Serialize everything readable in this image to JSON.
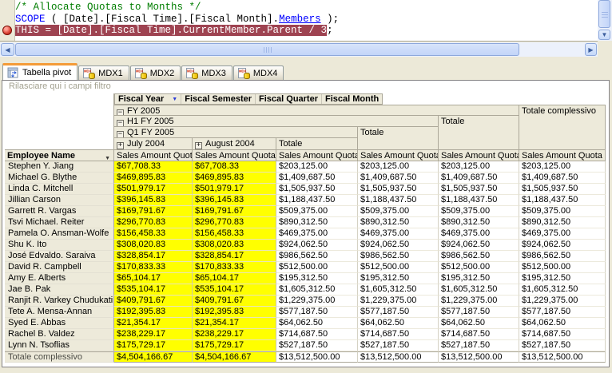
{
  "colors": {
    "window_gray": "#ECE9D8",
    "highlight_line_bg": "#9E4351",
    "comment_green": "#007D00",
    "keyword_blue": "#0000FF",
    "cell_highlight_yellow": "#FFFF00",
    "header_beige": "#EDEADA",
    "active_tab_accent_orange": "#F49B38",
    "breakpoint_red": "#C03030"
  },
  "code_editor": {
    "line1_comment": "/* Allocate Quotas to Months */",
    "line2": {
      "keyword": "SCOPE",
      "body": " ( [Date].[Fiscal Time].[Fiscal Month].",
      "member_fn": "Members",
      "tail": " );"
    },
    "line3": {
      "highlighted": "THIS = [Date].[Fiscal Time].CurrentMember.Parent / 3",
      "tail": ";"
    }
  },
  "tabs": [
    {
      "label": "Tabella pivot",
      "icon": "pivot-table-icon",
      "active": true
    },
    {
      "label": "MDX1",
      "icon": "mdx-icon",
      "active": false
    },
    {
      "label": "MDX2",
      "icon": "mdx-icon",
      "active": false
    },
    {
      "label": "MDX3",
      "icon": "mdx-icon",
      "active": false
    },
    {
      "label": "MDX4",
      "icon": "mdx-icon",
      "active": false
    }
  ],
  "pivot": {
    "filter_zone_text": "Rilasciare qui i campi filtro",
    "column_fields": [
      "Fiscal Year",
      "Fiscal Semester",
      "Fiscal Quarter",
      "Fiscal Month"
    ],
    "row_field": "Employee Name",
    "measure_label": "Sales Amount Quota",
    "hierarchy": {
      "fiscal_year": "FY 2005",
      "fiscal_semester": "H1 FY 2005",
      "fiscal_quarter": "Q1 FY 2005",
      "months": [
        "July 2004",
        "August 2004"
      ],
      "subtotal_label": "Totale",
      "grand_total_label": "Totale complessivo"
    },
    "rows": [
      {
        "name": "Stephen Y. Jiang",
        "values": [
          "$67,708.33",
          "$67,708.33",
          "$203,125.00",
          "$203,125.00",
          "$203,125.00",
          "$203,125.00"
        ]
      },
      {
        "name": "Michael G. Blythe",
        "values": [
          "$469,895.83",
          "$469,895.83",
          "$1,409,687.50",
          "$1,409,687.50",
          "$1,409,687.50",
          "$1,409,687.50"
        ]
      },
      {
        "name": "Linda C. Mitchell",
        "values": [
          "$501,979.17",
          "$501,979.17",
          "$1,505,937.50",
          "$1,505,937.50",
          "$1,505,937.50",
          "$1,505,937.50"
        ]
      },
      {
        "name": "Jillian Carson",
        "values": [
          "$396,145.83",
          "$396,145.83",
          "$1,188,437.50",
          "$1,188,437.50",
          "$1,188,437.50",
          "$1,188,437.50"
        ]
      },
      {
        "name": "Garrett R. Vargas",
        "values": [
          "$169,791.67",
          "$169,791.67",
          "$509,375.00",
          "$509,375.00",
          "$509,375.00",
          "$509,375.00"
        ]
      },
      {
        "name": "Tsvi Michael. Reiter",
        "values": [
          "$296,770.83",
          "$296,770.83",
          "$890,312.50",
          "$890,312.50",
          "$890,312.50",
          "$890,312.50"
        ]
      },
      {
        "name": "Pamela O. Ansman-Wolfe",
        "values": [
          "$156,458.33",
          "$156,458.33",
          "$469,375.00",
          "$469,375.00",
          "$469,375.00",
          "$469,375.00"
        ]
      },
      {
        "name": "Shu K. Ito",
        "values": [
          "$308,020.83",
          "$308,020.83",
          "$924,062.50",
          "$924,062.50",
          "$924,062.50",
          "$924,062.50"
        ]
      },
      {
        "name": "José Edvaldo. Saraiva",
        "values": [
          "$328,854.17",
          "$328,854.17",
          "$986,562.50",
          "$986,562.50",
          "$986,562.50",
          "$986,562.50"
        ]
      },
      {
        "name": "David R. Campbell",
        "values": [
          "$170,833.33",
          "$170,833.33",
          "$512,500.00",
          "$512,500.00",
          "$512,500.00",
          "$512,500.00"
        ]
      },
      {
        "name": "Amy E. Alberts",
        "values": [
          "$65,104.17",
          "$65,104.17",
          "$195,312.50",
          "$195,312.50",
          "$195,312.50",
          "$195,312.50"
        ]
      },
      {
        "name": "Jae B. Pak",
        "values": [
          "$535,104.17",
          "$535,104.17",
          "$1,605,312.50",
          "$1,605,312.50",
          "$1,605,312.50",
          "$1,605,312.50"
        ]
      },
      {
        "name": "Ranjit R. Varkey Chudukatil",
        "values": [
          "$409,791.67",
          "$409,791.67",
          "$1,229,375.00",
          "$1,229,375.00",
          "$1,229,375.00",
          "$1,229,375.00"
        ]
      },
      {
        "name": "Tete A. Mensa-Annan",
        "values": [
          "$192,395.83",
          "$192,395.83",
          "$577,187.50",
          "$577,187.50",
          "$577,187.50",
          "$577,187.50"
        ]
      },
      {
        "name": "Syed E. Abbas",
        "values": [
          "$21,354.17",
          "$21,354.17",
          "$64,062.50",
          "$64,062.50",
          "$64,062.50",
          "$64,062.50"
        ]
      },
      {
        "name": "Rachel B. Valdez",
        "values": [
          "$238,229.17",
          "$238,229.17",
          "$714,687.50",
          "$714,687.50",
          "$714,687.50",
          "$714,687.50"
        ]
      },
      {
        "name": "Lynn N. Tsoflias",
        "values": [
          "$175,729.17",
          "$175,729.17",
          "$527,187.50",
          "$527,187.50",
          "$527,187.50",
          "$527,187.50"
        ]
      }
    ],
    "grand_total_row": {
      "name": "Totale complessivo",
      "values": [
        "$4,504,166.67",
        "$4,504,166.67",
        "$13,512,500.00",
        "$13,512,500.00",
        "$13,512,500.00",
        "$13,512,500.00"
      ]
    }
  }
}
